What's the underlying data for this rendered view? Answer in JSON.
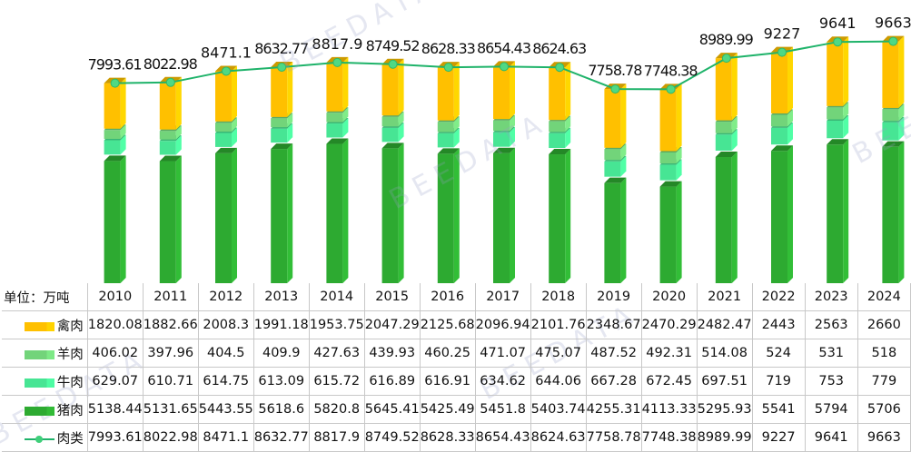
{
  "unit_label": "单位：万吨",
  "chart_data": {
    "type": "bar",
    "subtype": "stacked-bar-with-line",
    "title": "",
    "xlabel": "",
    "ylabel": "",
    "unit": "万吨",
    "categories": [
      "2010",
      "2011",
      "2012",
      "2013",
      "2014",
      "2015",
      "2016",
      "2017",
      "2018",
      "2019",
      "2020",
      "2021",
      "2022",
      "2023",
      "2024"
    ],
    "series": [
      {
        "name": "禽肉",
        "type": "bar",
        "color": "#ffc000",
        "values": [
          1820.08,
          1882.66,
          2008.3,
          1991.18,
          1953.75,
          2047.29,
          2125.68,
          2096.94,
          2101.76,
          2348.67,
          2470.29,
          2482.47,
          2443,
          2563,
          2660
        ]
      },
      {
        "name": "羊肉",
        "type": "bar",
        "color": "#72d47a",
        "values": [
          406.02,
          397.96,
          404.5,
          409.9,
          427.63,
          439.93,
          460.25,
          471.07,
          475.07,
          487.52,
          492.31,
          514.08,
          524,
          531,
          518
        ]
      },
      {
        "name": "牛肉",
        "type": "bar",
        "color": "#47e594",
        "values": [
          629.07,
          610.71,
          614.75,
          613.09,
          615.72,
          616.89,
          616.91,
          634.62,
          644.06,
          667.28,
          672.45,
          697.51,
          719,
          753,
          779
        ]
      },
      {
        "name": "猪肉",
        "type": "bar",
        "color": "#2daa31",
        "values": [
          5138.44,
          5131.65,
          5443.55,
          5618.6,
          5820.8,
          5645.41,
          5425.49,
          5451.8,
          5403.74,
          4255.31,
          4113.33,
          5295.93,
          5541,
          5794,
          5706
        ]
      },
      {
        "name": "肉类",
        "type": "line",
        "color": "#1fb36a",
        "values": [
          7993.61,
          8022.98,
          8471.1,
          8632.77,
          8817.9,
          8749.52,
          8628.33,
          8654.43,
          8624.63,
          7758.78,
          7748.38,
          8989.99,
          9227,
          9641,
          9663
        ]
      }
    ],
    "line_data_labels": [
      "7993.61",
      "8022.98",
      "8471.1",
      "8632.77",
      "8817.9",
      "8749.52",
      "8628.33",
      "8654.43",
      "8624.63",
      "7758.78",
      "7748.38",
      "8989.99",
      "9227",
      "9641",
      "9663"
    ],
    "stack_order_bottom_to_top": [
      "猪肉",
      "牛肉",
      "羊肉",
      "禽肉"
    ],
    "ylim": [
      0,
      10000
    ],
    "grid": false,
    "legend": "data-table-bottom"
  },
  "watermarks": [
    "BEEDATA",
    "BEECLOUD"
  ]
}
